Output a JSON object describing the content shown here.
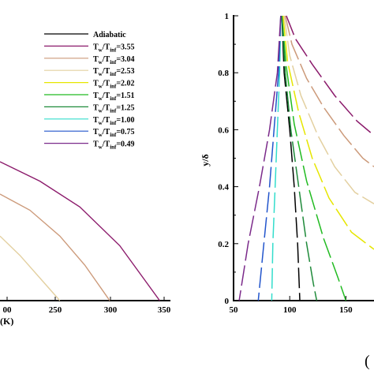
{
  "chart_data": [
    {
      "type": "line",
      "xlabel_visible": "(K)",
      "x_ticks": [
        "00",
        "250",
        "300",
        "350"
      ],
      "xlim": [
        190,
        360
      ],
      "ylim": [
        0,
        1
      ],
      "series": [
        {
          "name": "Tw/Tinf=0.49",
          "color": "#8b1a6b",
          "x": [
            190,
            230,
            270,
            310,
            350
          ],
          "y": [
            0.43,
            0.37,
            0.29,
            0.17,
            0.0
          ]
        },
        {
          "name": "Tw/Tinf=0.75",
          "color": "#cc9a7a",
          "x": [
            190,
            220,
            250,
            275,
            300
          ],
          "y": [
            0.33,
            0.28,
            0.2,
            0.11,
            0.0
          ]
        },
        {
          "name": "Tw/Tinf=1.00",
          "color": "#e3d0a0",
          "x": [
            190,
            210,
            230,
            250
          ],
          "y": [
            0.2,
            0.14,
            0.07,
            0.0
          ]
        }
      ]
    },
    {
      "type": "line",
      "ylabel": "y/δ",
      "xlim": [
        50,
        175
      ],
      "ylim": [
        0,
        1
      ],
      "x_ticks": [
        "50",
        "100",
        "150"
      ],
      "y_ticks": [
        "0",
        "0.2",
        "0.4",
        "0.6",
        "0.8",
        "1"
      ],
      "legend_position": "top-left",
      "series": [
        {
          "name": "Adiabatic",
          "color": "#000000",
          "x": [
            93,
            95,
            100,
            104,
            107,
            109
          ],
          "y": [
            1.0,
            0.8,
            0.6,
            0.4,
            0.2,
            0.0
          ]
        },
        {
          "name": "Tw/Tinf=3.55",
          "color": "#8b1a6b",
          "x": [
            97,
            105,
            120,
            140,
            160,
            172
          ],
          "y": [
            1.0,
            0.92,
            0.83,
            0.72,
            0.63,
            0.59
          ]
        },
        {
          "name": "Tw/Tinf=3.04",
          "color": "#cc9a7a",
          "x": [
            96,
            102,
            115,
            130,
            148,
            165,
            175
          ],
          "y": [
            1.0,
            0.9,
            0.78,
            0.68,
            0.58,
            0.5,
            0.47
          ]
        },
        {
          "name": "Tw/Tinf=2.53",
          "color": "#e3d0a0",
          "x": [
            95,
            100,
            110,
            125,
            140,
            158,
            175
          ],
          "y": [
            1.0,
            0.86,
            0.72,
            0.58,
            0.47,
            0.38,
            0.34
          ]
        },
        {
          "name": "Tw/Tinf=2.02",
          "color": "#e6e600",
          "x": [
            94,
            98,
            108,
            120,
            135,
            155,
            175
          ],
          "y": [
            1.0,
            0.84,
            0.66,
            0.5,
            0.36,
            0.24,
            0.18
          ]
        },
        {
          "name": "Tw/Tinf=1.51",
          "color": "#22bb22",
          "x": [
            93,
            97,
            104,
            115,
            130,
            143,
            150
          ],
          "y": [
            1.0,
            0.82,
            0.62,
            0.42,
            0.22,
            0.08,
            0.0
          ]
        },
        {
          "name": "Tw/Tinf=1.25",
          "color": "#1f8a3a",
          "x": [
            93,
            96,
            101,
            108,
            115,
            121,
            124
          ],
          "y": [
            1.0,
            0.8,
            0.6,
            0.4,
            0.2,
            0.06,
            0.0
          ]
        },
        {
          "name": "Tw/Tinf=1.00",
          "color": "#33ddcc",
          "x": [
            92,
            91,
            89,
            87,
            85,
            84
          ],
          "y": [
            1.0,
            0.8,
            0.6,
            0.4,
            0.2,
            0.0
          ]
        },
        {
          "name": "Tw/Tinf=0.75",
          "color": "#2255cc",
          "x": [
            92,
            90,
            86,
            82,
            77,
            72
          ],
          "y": [
            1.0,
            0.8,
            0.6,
            0.4,
            0.2,
            0.0
          ]
        },
        {
          "name": "Tw/Tinf=0.49",
          "color": "#7b2a8a",
          "x": [
            92,
            89,
            82,
            73,
            63,
            55
          ],
          "y": [
            1.0,
            0.8,
            0.6,
            0.4,
            0.2,
            0.0
          ]
        }
      ]
    }
  ],
  "legend": {
    "entries": [
      {
        "prefix": "Adiabatic",
        "ratio": "",
        "color": "#000000"
      },
      {
        "prefix": "T",
        "ratio": "3.55",
        "color": "#8b1a6b"
      },
      {
        "prefix": "T",
        "ratio": "3.04",
        "color": "#cc9a7a"
      },
      {
        "prefix": "T",
        "ratio": "2.53",
        "color": "#e3d0a0"
      },
      {
        "prefix": "T",
        "ratio": "2.02",
        "color": "#e6e600"
      },
      {
        "prefix": "T",
        "ratio": "1.51",
        "color": "#22bb22"
      },
      {
        "prefix": "T",
        "ratio": "1.25",
        "color": "#1f8a3a"
      },
      {
        "prefix": "T",
        "ratio": "1.00",
        "color": "#33ddcc"
      },
      {
        "prefix": "T",
        "ratio": "0.75",
        "color": "#2255cc"
      },
      {
        "prefix": "T",
        "ratio": "0.49",
        "color": "#7b2a8a"
      }
    ]
  },
  "panel_label": "("
}
